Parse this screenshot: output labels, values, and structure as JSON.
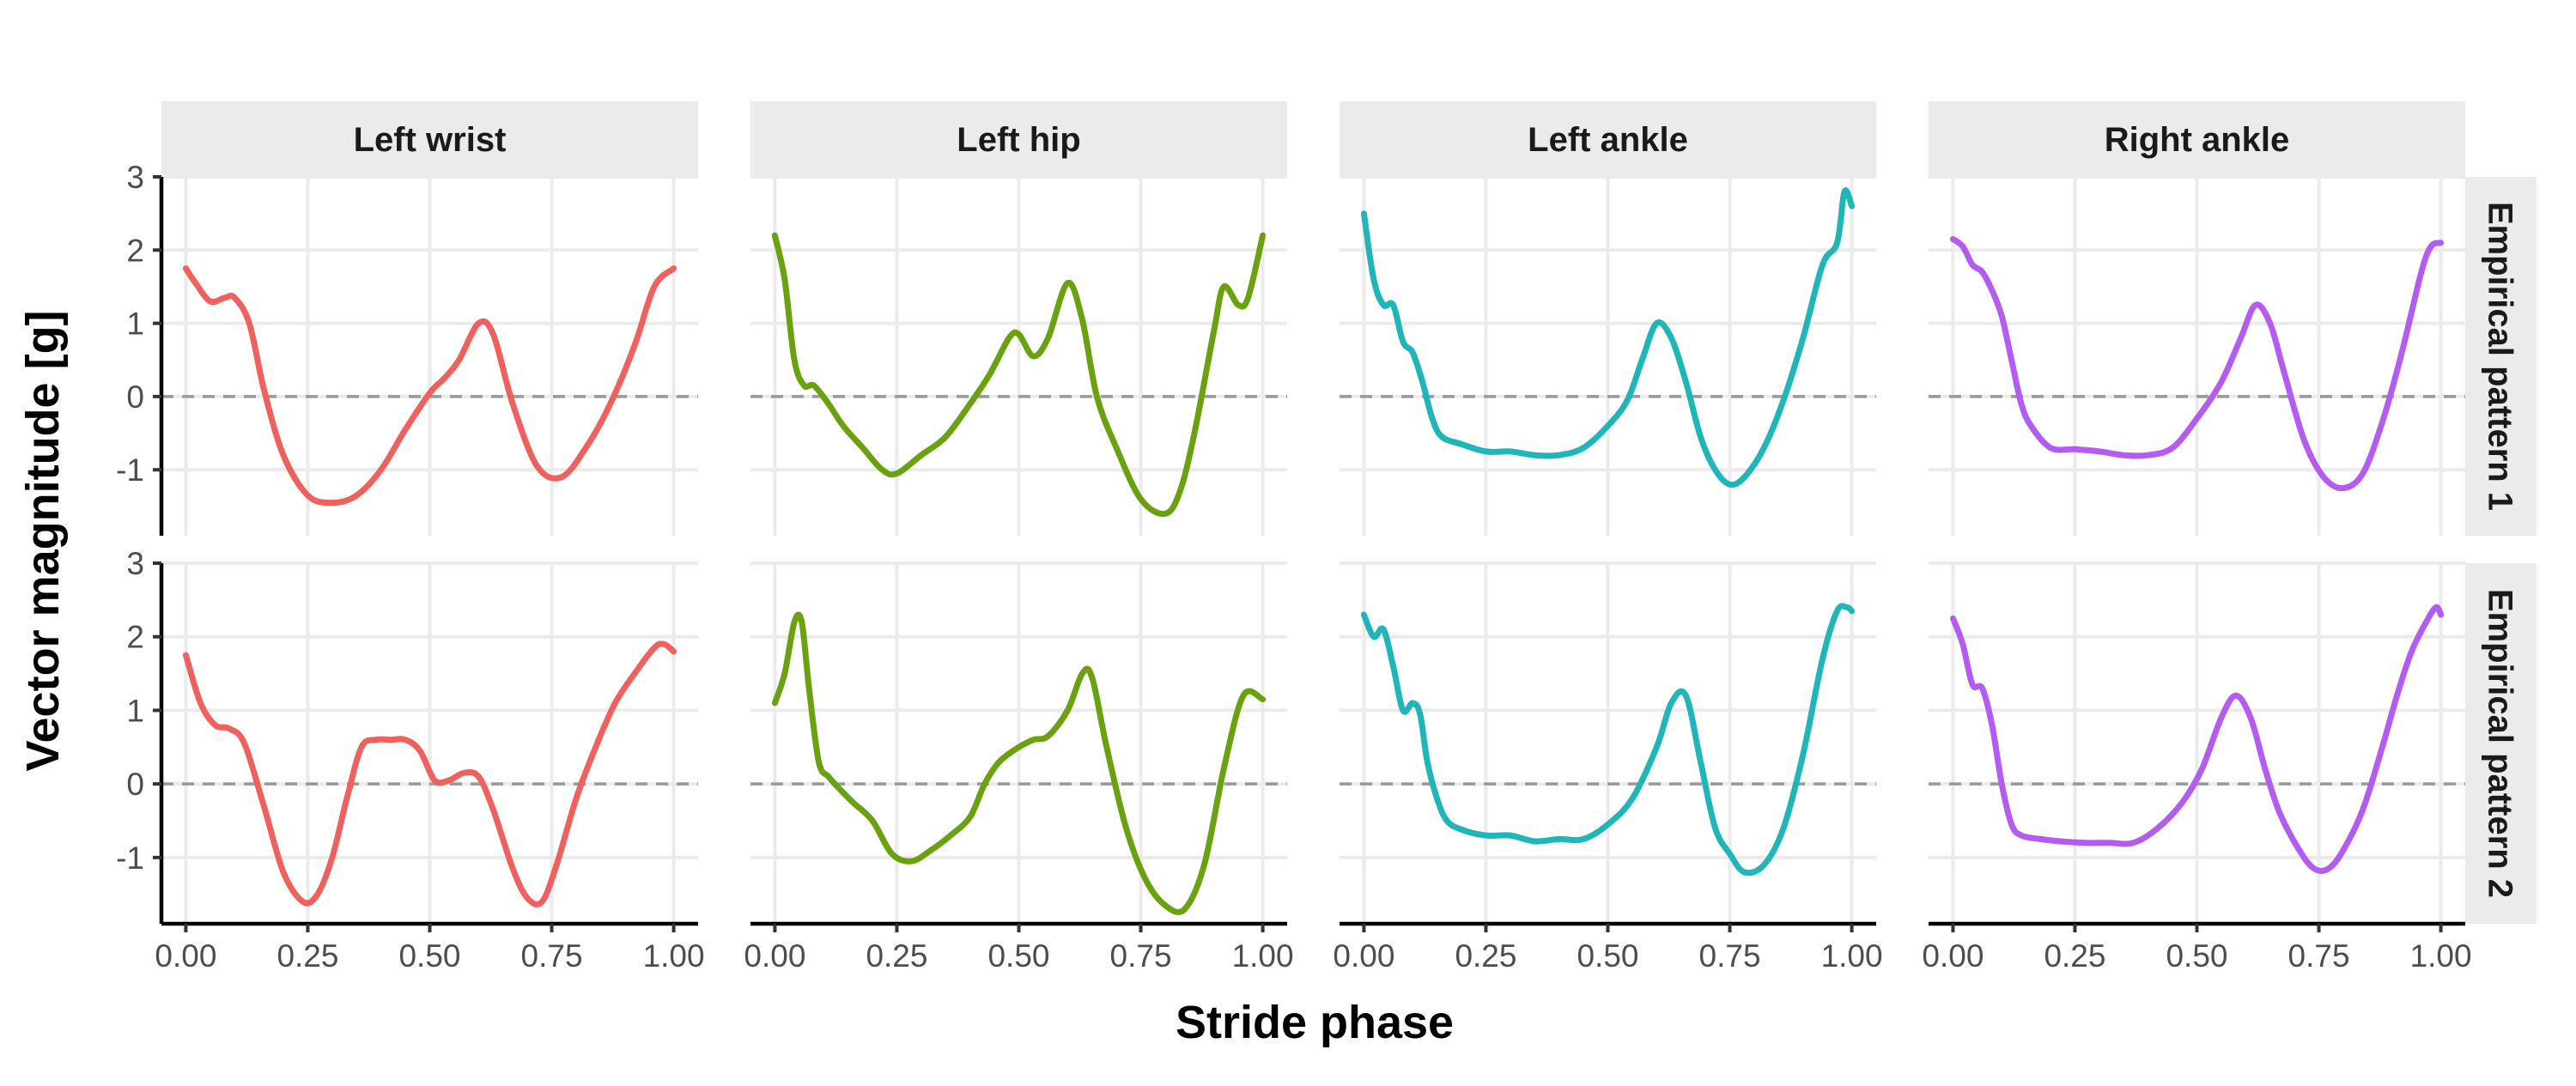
{
  "chart_data": {
    "type": "line",
    "xlabel": "Stride phase",
    "ylabel": "Vector magnitude [g]",
    "xlim": [
      -0.05,
      1.05
    ],
    "ylim": [
      -1.9,
      3.0
    ],
    "x_ticks": [
      0,
      0.25,
      0.5,
      0.75,
      1.0
    ],
    "x_tick_labels": [
      "0.00",
      "0.25",
      "0.50",
      "0.75",
      "1.00"
    ],
    "y_ticks": [
      -1,
      0,
      1,
      2,
      3
    ],
    "y_tick_labels": [
      "-1",
      "0",
      "1",
      "2",
      "3"
    ],
    "grid": true,
    "reference_line": {
      "y": 0,
      "style": "dashed"
    },
    "columns": [
      "Left wrist",
      "Left hip",
      "Left ankle",
      "Right ankle"
    ],
    "rows": [
      "Empirical pattern 1",
      "Empirical pattern 2"
    ],
    "colors": {
      "Left wrist": "#F0605D",
      "Left hip": "#6AA20F",
      "Left ankle": "#1FB5B9",
      "Right ankle": "#B45CF2"
    },
    "panels": [
      {
        "row": "Empirical pattern 1",
        "column": "Left wrist",
        "x": [
          0,
          0.02,
          0.05,
          0.08,
          0.1,
          0.13,
          0.16,
          0.2,
          0.25,
          0.3,
          0.35,
          0.4,
          0.45,
          0.5,
          0.53,
          0.56,
          0.6,
          0.63,
          0.67,
          0.72,
          0.77,
          0.82,
          0.87,
          0.92,
          0.96,
          1.0
        ],
        "y": [
          1.75,
          1.55,
          1.3,
          1.35,
          1.35,
          1.0,
          0.1,
          -0.8,
          -1.35,
          -1.45,
          -1.35,
          -1.0,
          -0.45,
          0.05,
          0.25,
          0.5,
          1.0,
          0.85,
          -0.1,
          -0.95,
          -1.1,
          -0.7,
          -0.1,
          0.7,
          1.5,
          1.75
        ]
      },
      {
        "row": "Empirical pattern 1",
        "column": "Left hip",
        "x": [
          0,
          0.02,
          0.04,
          0.06,
          0.08,
          0.11,
          0.14,
          0.18,
          0.22,
          0.25,
          0.3,
          0.35,
          0.4,
          0.44,
          0.48,
          0.5,
          0.53,
          0.56,
          0.6,
          0.63,
          0.66,
          0.7,
          0.75,
          0.8,
          0.83,
          0.86,
          0.9,
          0.92,
          0.95,
          0.97,
          1.0
        ],
        "y": [
          2.2,
          1.6,
          0.5,
          0.15,
          0.15,
          -0.1,
          -0.4,
          -0.7,
          -1.0,
          -1.05,
          -0.8,
          -0.55,
          -0.1,
          0.3,
          0.8,
          0.85,
          0.55,
          0.8,
          1.55,
          1.05,
          0.0,
          -0.7,
          -1.4,
          -1.6,
          -1.3,
          -0.5,
          0.9,
          1.5,
          1.25,
          1.35,
          2.2
        ]
      },
      {
        "row": "Empirical pattern 1",
        "column": "Left ankle",
        "x": [
          0,
          0.02,
          0.04,
          0.06,
          0.08,
          0.1,
          0.12,
          0.14,
          0.16,
          0.2,
          0.25,
          0.3,
          0.35,
          0.4,
          0.45,
          0.5,
          0.54,
          0.57,
          0.6,
          0.63,
          0.66,
          0.69,
          0.72,
          0.75,
          0.78,
          0.82,
          0.86,
          0.9,
          0.94,
          0.97,
          0.985,
          1.0
        ],
        "y": [
          2.5,
          1.6,
          1.25,
          1.25,
          0.75,
          0.6,
          0.2,
          -0.3,
          -0.55,
          -0.65,
          -0.75,
          -0.75,
          -0.8,
          -0.8,
          -0.7,
          -0.4,
          -0.05,
          0.5,
          1.0,
          0.8,
          0.2,
          -0.55,
          -1.0,
          -1.2,
          -1.1,
          -0.7,
          -0.05,
          0.8,
          1.8,
          2.1,
          2.8,
          2.6
        ]
      },
      {
        "row": "Empirical pattern 1",
        "column": "Right ankle",
        "x": [
          0,
          0.02,
          0.04,
          0.06,
          0.08,
          0.1,
          0.12,
          0.14,
          0.16,
          0.2,
          0.25,
          0.3,
          0.35,
          0.4,
          0.45,
          0.5,
          0.55,
          0.59,
          0.62,
          0.65,
          0.68,
          0.72,
          0.76,
          0.8,
          0.84,
          0.88,
          0.92,
          0.96,
          0.98,
          1.0
        ],
        "y": [
          2.15,
          2.05,
          1.8,
          1.7,
          1.45,
          1.1,
          0.5,
          -0.1,
          -0.4,
          -0.7,
          -0.72,
          -0.75,
          -0.8,
          -0.8,
          -0.7,
          -0.3,
          0.2,
          0.8,
          1.25,
          1.0,
          0.3,
          -0.6,
          -1.1,
          -1.25,
          -1.05,
          -0.35,
          0.6,
          1.7,
          2.05,
          2.1
        ]
      },
      {
        "row": "Empirical pattern 2",
        "column": "Left wrist",
        "x": [
          0,
          0.03,
          0.06,
          0.09,
          0.12,
          0.16,
          0.2,
          0.24,
          0.27,
          0.3,
          0.33,
          0.36,
          0.39,
          0.42,
          0.45,
          0.48,
          0.51,
          0.54,
          0.57,
          0.6,
          0.63,
          0.67,
          0.7,
          0.73,
          0.76,
          0.8,
          0.84,
          0.88,
          0.92,
          0.96,
          0.98,
          1.0
        ],
        "y": [
          1.75,
          1.1,
          0.8,
          0.75,
          0.55,
          -0.3,
          -1.2,
          -1.6,
          -1.5,
          -1.0,
          -0.2,
          0.5,
          0.6,
          0.6,
          0.6,
          0.45,
          0.05,
          0.05,
          0.15,
          0.1,
          -0.35,
          -1.15,
          -1.55,
          -1.6,
          -1.1,
          -0.2,
          0.5,
          1.1,
          1.5,
          1.85,
          1.9,
          1.8
        ]
      },
      {
        "row": "Empirical pattern 2",
        "column": "Left hip",
        "x": [
          0,
          0.02,
          0.04,
          0.055,
          0.07,
          0.09,
          0.11,
          0.13,
          0.16,
          0.2,
          0.24,
          0.28,
          0.32,
          0.36,
          0.4,
          0.43,
          0.46,
          0.5,
          0.53,
          0.56,
          0.6,
          0.63,
          0.65,
          0.68,
          0.72,
          0.76,
          0.8,
          0.84,
          0.88,
          0.92,
          0.96,
          1.0
        ],
        "y": [
          1.1,
          1.5,
          2.2,
          2.2,
          1.3,
          0.3,
          0.1,
          -0.05,
          -0.25,
          -0.5,
          -0.95,
          -1.05,
          -0.9,
          -0.7,
          -0.45,
          0.0,
          0.3,
          0.5,
          0.6,
          0.65,
          1.0,
          1.5,
          1.45,
          0.5,
          -0.6,
          -1.3,
          -1.65,
          -1.7,
          -1.1,
          0.2,
          1.2,
          1.15
        ]
      },
      {
        "row": "Empirical pattern 2",
        "column": "Left ankle",
        "x": [
          0,
          0.02,
          0.04,
          0.06,
          0.08,
          0.1,
          0.115,
          0.13,
          0.15,
          0.17,
          0.2,
          0.25,
          0.3,
          0.35,
          0.4,
          0.45,
          0.5,
          0.55,
          0.6,
          0.63,
          0.66,
          0.69,
          0.72,
          0.75,
          0.78,
          0.82,
          0.86,
          0.9,
          0.94,
          0.97,
          0.99,
          1.0
        ],
        "y": [
          2.3,
          2.0,
          2.1,
          1.6,
          1.0,
          1.1,
          0.95,
          0.3,
          -0.2,
          -0.5,
          -0.62,
          -0.7,
          -0.7,
          -0.78,
          -0.75,
          -0.75,
          -0.55,
          -0.2,
          0.5,
          1.1,
          1.2,
          0.3,
          -0.6,
          -0.95,
          -1.2,
          -1.1,
          -0.6,
          0.4,
          1.7,
          2.35,
          2.4,
          2.35
        ]
      },
      {
        "row": "Empirical pattern 2",
        "column": "Right ankle",
        "x": [
          0,
          0.02,
          0.04,
          0.06,
          0.08,
          0.1,
          0.12,
          0.14,
          0.18,
          0.22,
          0.27,
          0.32,
          0.37,
          0.42,
          0.47,
          0.51,
          0.55,
          0.58,
          0.61,
          0.64,
          0.67,
          0.71,
          0.74,
          0.77,
          0.8,
          0.84,
          0.88,
          0.91,
          0.94,
          0.97,
          0.99,
          1.0
        ],
        "y": [
          2.25,
          1.9,
          1.35,
          1.3,
          0.8,
          0.0,
          -0.55,
          -0.7,
          -0.75,
          -0.78,
          -0.8,
          -0.8,
          -0.8,
          -0.6,
          -0.25,
          0.2,
          0.9,
          1.2,
          0.9,
          0.2,
          -0.4,
          -0.9,
          -1.15,
          -1.15,
          -0.9,
          -0.35,
          0.5,
          1.2,
          1.8,
          2.2,
          2.4,
          2.3
        ]
      }
    ]
  }
}
